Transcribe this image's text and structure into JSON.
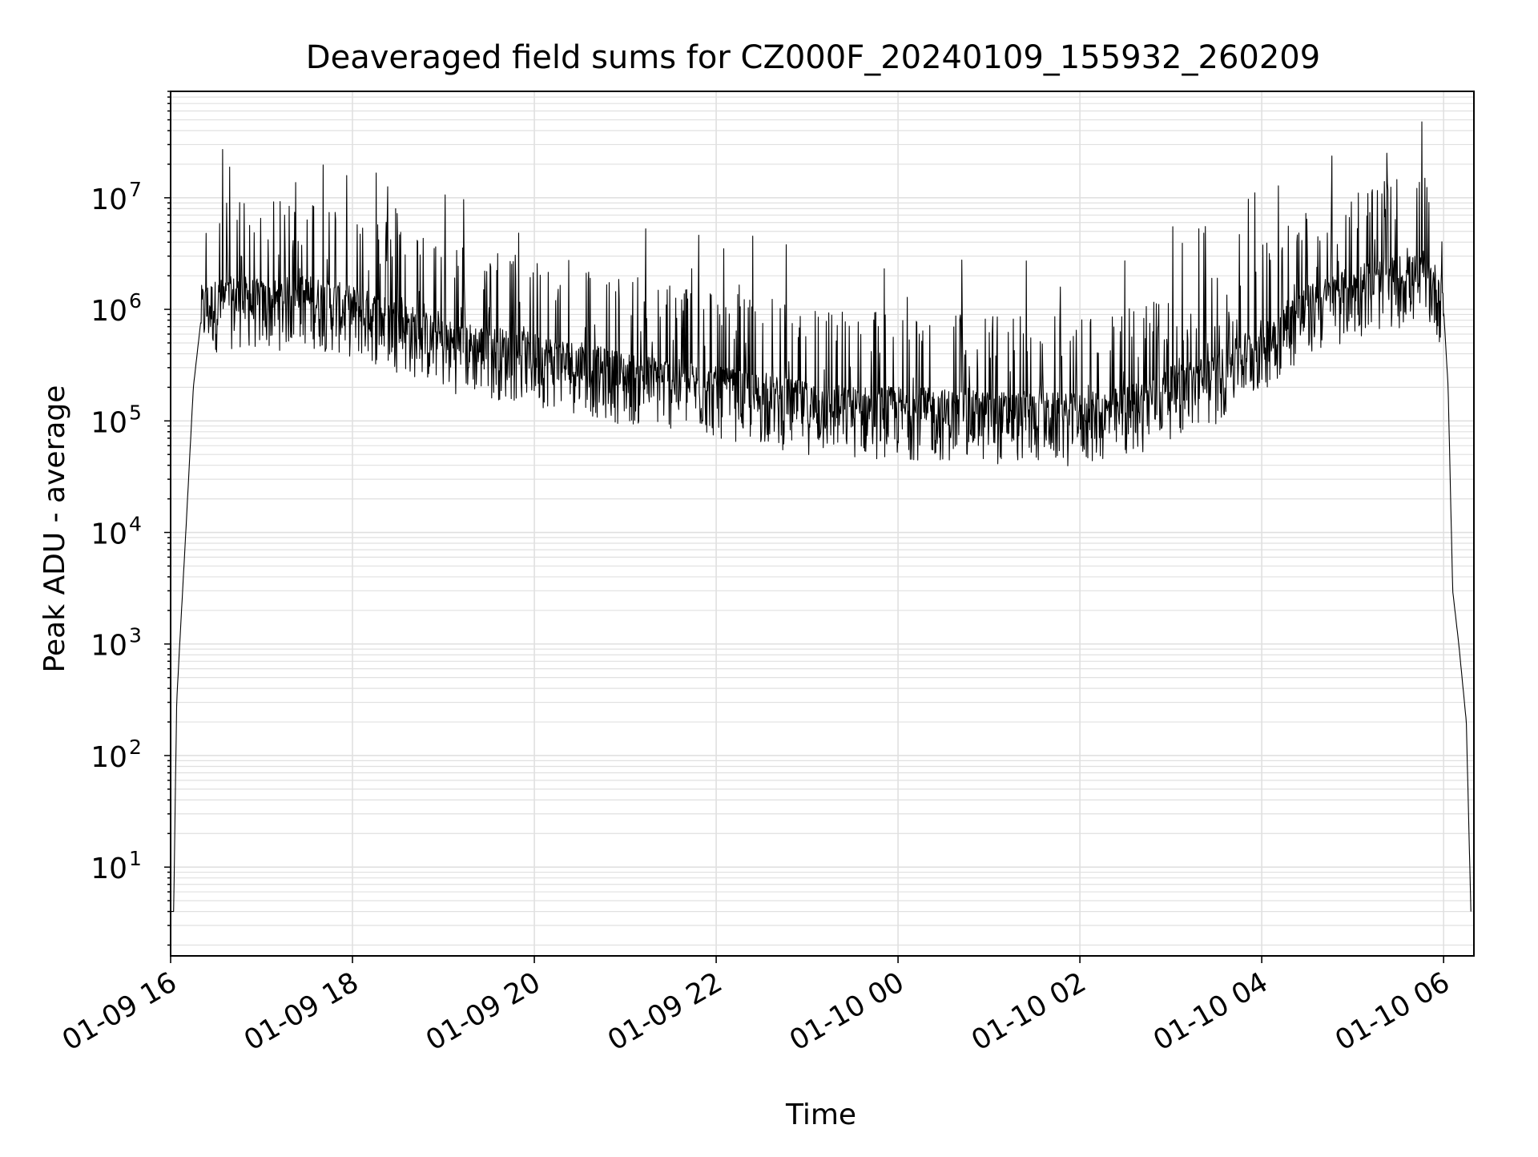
{
  "chart_data": {
    "type": "line",
    "title": "Deaveraged field sums for CZ000F_20240109_155932_260209",
    "xlabel": "Time",
    "ylabel": "Peak ADU - average",
    "yscale": "log",
    "ylim": [
      1.6,
      90000000
    ],
    "xlim": [
      "2024-01-09 16:00",
      "2024-01-10 06:20"
    ],
    "grid": true,
    "legend": "none",
    "x_ticks": [
      "01-09 16",
      "01-09 18",
      "01-09 20",
      "01-09 22",
      "01-10 00",
      "01-10 02",
      "01-10 04",
      "01-10 06"
    ],
    "y_ticks": [
      {
        "base": "10",
        "exp": "1",
        "value": 10
      },
      {
        "base": "10",
        "exp": "2",
        "value": 100
      },
      {
        "base": "10",
        "exp": "3",
        "value": 1000
      },
      {
        "base": "10",
        "exp": "4",
        "value": 10000
      },
      {
        "base": "10",
        "exp": "5",
        "value": 100000
      },
      {
        "base": "10",
        "exp": "6",
        "value": 1000000
      },
      {
        "base": "10",
        "exp": "7",
        "value": 10000000
      }
    ],
    "line_color": "#000000",
    "grid_color": "#e0e0e0",
    "series": [
      {
        "x": [
          "2024-01-09 16:00",
          "2024-01-09 16:02",
          "2024-01-09 16:04",
          "2024-01-09 16:06",
          "2024-01-09 16:10",
          "2024-01-09 16:15",
          "2024-01-09 16:20",
          "2024-01-09 16:30",
          "2024-01-09 16:45",
          "2024-01-09 17:00",
          "2024-01-09 17:30",
          "2024-01-09 18:00",
          "2024-01-09 18:30",
          "2024-01-09 19:00",
          "2024-01-09 19:30",
          "2024-01-09 20:00",
          "2024-01-09 20:30",
          "2024-01-09 21:00",
          "2024-01-09 21:30",
          "2024-01-09 22:00",
          "2024-01-09 22:30",
          "2024-01-09 23:00",
          "2024-01-09 23:30",
          "2024-01-10 00:00",
          "2024-01-10 00:30",
          "2024-01-10 01:00",
          "2024-01-10 01:30",
          "2024-01-10 02:00",
          "2024-01-10 02:30",
          "2024-01-10 03:00",
          "2024-01-10 03:30",
          "2024-01-10 04:00",
          "2024-01-10 04:30",
          "2024-01-10 05:00",
          "2024-01-10 05:30",
          "2024-01-10 05:50",
          "2024-01-10 06:00",
          "2024-01-10 06:03",
          "2024-01-10 06:06",
          "2024-01-10 06:10",
          "2024-01-10 06:15",
          "2024-01-10 06:18"
        ],
        "y": [
          4,
          4,
          300,
          1000,
          10000,
          200000,
          800000,
          900000,
          1000000,
          900000,
          1000000,
          800000,
          600000,
          400000,
          350000,
          300000,
          250000,
          200000,
          180000,
          150000,
          130000,
          110000,
          100000,
          100000,
          95000,
          90000,
          90000,
          85000,
          100000,
          150000,
          200000,
          400000,
          800000,
          1200000,
          1500000,
          1500000,
          1000000,
          200000,
          3000,
          1000,
          200,
          4
        ]
      }
    ]
  }
}
